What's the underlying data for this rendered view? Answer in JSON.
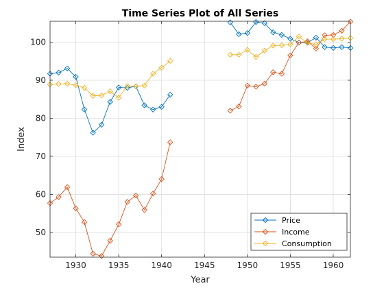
{
  "chart_data": {
    "type": "line",
    "title": "Time Series Plot of All Series",
    "xlabel": "Year",
    "ylabel": "Index",
    "xlim": [
      1927,
      1962
    ],
    "ylim": [
      43.5,
      105.5
    ],
    "xticks": [
      1930,
      1935,
      1940,
      1945,
      1950,
      1955,
      1960
    ],
    "yticks": [
      50,
      60,
      70,
      80,
      90,
      100
    ],
    "grid": true,
    "legend_position": "bottom-right",
    "x": [
      1927,
      1928,
      1929,
      1930,
      1931,
      1932,
      1933,
      1934,
      1935,
      1936,
      1937,
      1938,
      1939,
      1940,
      1941,
      1942,
      1943,
      1944,
      1945,
      1946,
      1947,
      1948,
      1949,
      1950,
      1951,
      1952,
      1953,
      1954,
      1955,
      1956,
      1957,
      1958,
      1959,
      1960,
      1961,
      1962
    ],
    "series": [
      {
        "name": "Price",
        "color": "#0072BD",
        "values": [
          91.7,
          92.0,
          93.1,
          90.9,
          82.3,
          76.2,
          78.3,
          84.3,
          88.1,
          88.0,
          88.4,
          83.4,
          82.3,
          83.0,
          86.2,
          null,
          null,
          null,
          null,
          null,
          null,
          105.2,
          102.1,
          102.4,
          105.3,
          105.0,
          102.6,
          101.9,
          100.9,
          99.9,
          99.9,
          101.2,
          98.7,
          98.5,
          98.7,
          98.5
        ]
      },
      {
        "name": "Income",
        "color": "#D95319",
        "values": [
          57.7,
          59.3,
          61.9,
          56.3,
          52.7,
          44.4,
          43.8,
          47.8,
          52.1,
          58.0,
          59.7,
          55.9,
          60.2,
          64.0,
          73.7,
          null,
          null,
          null,
          null,
          null,
          null,
          82.0,
          83.1,
          88.6,
          88.3,
          89.1,
          92.1,
          91.7,
          96.5,
          99.9,
          100.2,
          98.3,
          101.8,
          101.9,
          103.0,
          105.4
        ]
      },
      {
        "name": "Consumption",
        "color": "#EDB120",
        "values": [
          88.9,
          89.0,
          89.1,
          88.7,
          88.0,
          85.9,
          86.0,
          87.1,
          85.4,
          88.5,
          88.4,
          88.6,
          91.7,
          93.3,
          95.1,
          null,
          null,
          null,
          null,
          null,
          null,
          96.7,
          96.7,
          98.0,
          96.1,
          97.8,
          99.1,
          99.2,
          99.4,
          101.5,
          99.8,
          99.4,
          100.8,
          100.8,
          100.9,
          101.1
        ]
      }
    ]
  }
}
